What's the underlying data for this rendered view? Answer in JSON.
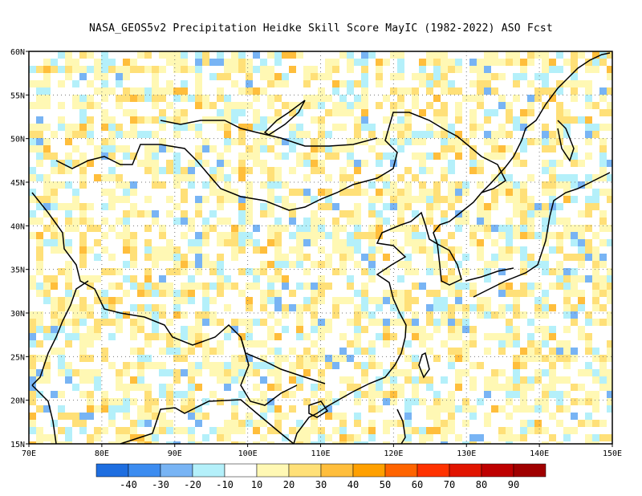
{
  "title": "NASA_GEOS5v2  Precipitation Heidke Skill Score MayIC (1982-2022) ASO Fcst",
  "map": {
    "lon_range": [
      70,
      150
    ],
    "lat_range": [
      15,
      60
    ],
    "lon_ticks": [
      "70E",
      "80E",
      "90E",
      "100E",
      "110E",
      "120E",
      "130E",
      "140E",
      "150E"
    ],
    "lat_ticks": [
      "15N",
      "20N",
      "25N",
      "30N",
      "35N",
      "40N",
      "45N",
      "50N",
      "55N",
      "60N"
    ],
    "grid": "dotted",
    "ocean_color": "#ffffff"
  },
  "colorbar": {
    "labels": [
      "-40",
      "-30",
      "-20",
      "-10",
      "10",
      "20",
      "30",
      "40",
      "50",
      "60",
      "70",
      "80",
      "90"
    ],
    "colors": [
      "#1e6ee0",
      "#3c8cf0",
      "#78b4f4",
      "#b4f0fa",
      "#ffffff",
      "#fff8b4",
      "#ffe078",
      "#ffbe3c",
      "#ffa000",
      "#ff6400",
      "#ff3200",
      "#e11400",
      "#be0000",
      "#a00000"
    ]
  }
}
